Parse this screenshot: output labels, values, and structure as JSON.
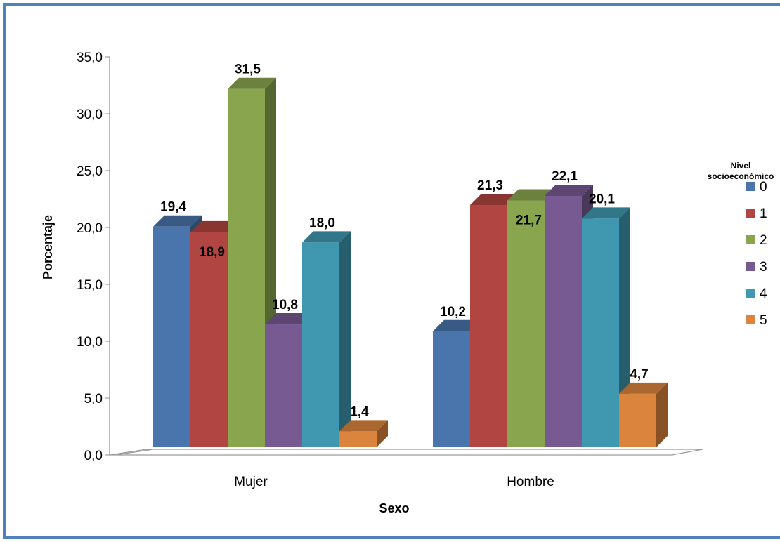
{
  "chart_data": {
    "type": "bar",
    "xlabel": "Sexo",
    "ylabel": "Porcentaje",
    "ylim": [
      0,
      35
    ],
    "yticks": [
      "0,0",
      "5,0",
      "10,0",
      "15,0",
      "20,0",
      "25,0",
      "30,0",
      "35,0"
    ],
    "categories": [
      "Mujer",
      "Hombre"
    ],
    "legend": {
      "title": "Nivel socioeconómico",
      "position": "right"
    },
    "series": [
      {
        "name": "0",
        "values": [
          19.4,
          10.2
        ],
        "labels": [
          "19,4",
          "10,2"
        ],
        "color": "#4a74ac"
      },
      {
        "name": "1",
        "values": [
          18.9,
          21.3
        ],
        "labels": [
          "18,9",
          "21,3"
        ],
        "color": "#b04542"
      },
      {
        "name": "2",
        "values": [
          31.5,
          21.7
        ],
        "labels": [
          "31,5",
          "21,7"
        ],
        "color": "#89a64e"
      },
      {
        "name": "3",
        "values": [
          10.8,
          22.1
        ],
        "labels": [
          "10,8",
          "22,1"
        ],
        "color": "#775a92"
      },
      {
        "name": "4",
        "values": [
          18.0,
          20.1
        ],
        "labels": [
          "18,0",
          "20,1"
        ],
        "color": "#3f98b0"
      },
      {
        "name": "5",
        "values": [
          1.4,
          4.7
        ],
        "labels": [
          "1,4",
          "4,7"
        ],
        "color": "#db843d"
      }
    ]
  }
}
